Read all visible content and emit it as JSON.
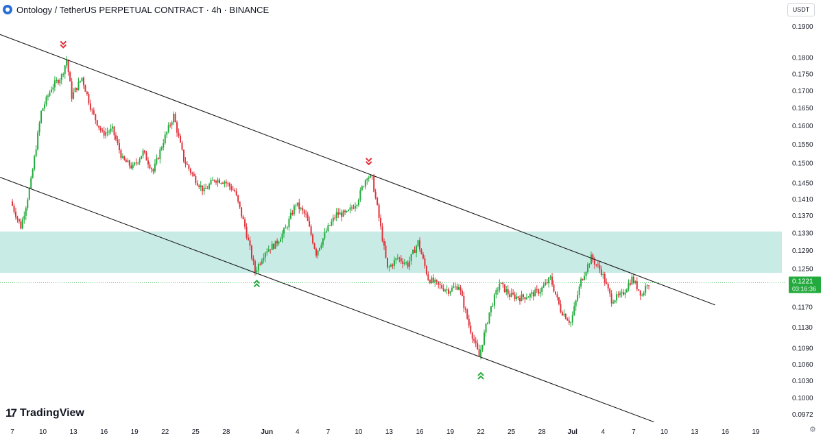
{
  "header": {
    "title": "Ontology / TetherUS PERPETUAL CONTRACT · 4h · BINANCE",
    "currency": "USDT"
  },
  "brand": {
    "name": "TradingView"
  },
  "colors": {
    "up": "#26a69a",
    "up_candle": "#22ab3c",
    "down": "#e0313a",
    "zone": "#a8ded6",
    "line": "#1a1a1a",
    "price_label": "#22ab3c"
  },
  "chart_data": {
    "type": "candlestick",
    "interval": "4h",
    "y_scale": "log",
    "ylim": [
      0.0955,
      0.1925
    ],
    "y_ticks": [
      "0.1900",
      "0.1800",
      "0.1750",
      "0.1700",
      "0.1650",
      "0.1600",
      "0.1550",
      "0.1500",
      "0.1450",
      "0.1410",
      "0.1370",
      "0.1330",
      "0.1290",
      "0.1250",
      "0.1170",
      "0.1130",
      "0.1090",
      "0.1060",
      "0.1030",
      "0.1000",
      "0.0972"
    ],
    "x_ticks": [
      "7",
      "10",
      "13",
      "16",
      "19",
      "22",
      "25",
      "28",
      "Jun",
      "4",
      "7",
      "10",
      "13",
      "16",
      "19",
      "22",
      "25",
      "28",
      "Jul",
      "4",
      "7",
      "10",
      "13",
      "16",
      "19"
    ],
    "last_price": "0.1221",
    "countdown": "03:16:36",
    "support_resistance_zone": [
      0.1242,
      0.1334
    ],
    "channel_upper": [
      [
        "May 7",
        0.1875
      ],
      [
        "Jul 15",
        0.1175
      ]
    ],
    "channel_lower": [
      [
        "May 7",
        0.1465
      ],
      [
        "Jul 9",
        0.096
      ]
    ],
    "markers": [
      {
        "type": "sell",
        "date": "May 12",
        "price": 0.1805
      },
      {
        "type": "sell",
        "date": "Jun 11",
        "price": 0.1475
      },
      {
        "type": "buy",
        "date": "May 31",
        "price": 0.1243
      },
      {
        "type": "buy",
        "date": "Jun 22",
        "price": 0.106
      }
    ],
    "price_path": [
      [
        "May 7",
        0.1405
      ],
      [
        "May 8",
        0.1345
      ],
      [
        "May 8.5",
        0.1395
      ],
      [
        "May 9",
        0.1455
      ],
      [
        "May 10",
        0.164
      ],
      [
        "May 11",
        0.171
      ],
      [
        "May 12",
        0.1745
      ],
      [
        "May 12.5",
        0.1795
      ],
      [
        "May 13",
        0.1685
      ],
      [
        "May 14",
        0.174
      ],
      [
        "May 15",
        0.164
      ],
      [
        "May 16",
        0.158
      ],
      [
        "May 17",
        0.159
      ],
      [
        "May 18",
        0.151
      ],
      [
        "May 19",
        0.149
      ],
      [
        "May 20",
        0.153
      ],
      [
        "May 21",
        0.148
      ],
      [
        "May 22",
        0.156
      ],
      [
        "May 23",
        0.163
      ],
      [
        "May 24",
        0.151
      ],
      [
        "May 25",
        0.1465
      ],
      [
        "May 26",
        0.143
      ],
      [
        "May 27",
        0.146
      ],
      [
        "May 28",
        0.1455
      ],
      [
        "May 29",
        0.143
      ],
      [
        "May 30",
        0.1345
      ],
      [
        "May 31",
        0.1245
      ],
      [
        "Jun 1",
        0.129
      ],
      [
        "Jun 2",
        0.1305
      ],
      [
        "Jun 3",
        0.134
      ],
      [
        "Jun 4",
        0.14
      ],
      [
        "Jun 5",
        0.137
      ],
      [
        "Jun 6",
        0.1285
      ],
      [
        "Jun 7",
        0.1335
      ],
      [
        "Jun 8",
        0.1375
      ],
      [
        "Jun 9",
        0.1375
      ],
      [
        "Jun 10",
        0.1405
      ],
      [
        "Jun 11",
        0.147
      ],
      [
        "Jun 11.5",
        0.146
      ],
      [
        "Jun 12",
        0.139
      ],
      [
        "Jun 13",
        0.125
      ],
      [
        "Jun 14",
        0.1275
      ],
      [
        "Jun 15",
        0.126
      ],
      [
        "Jun 16",
        0.131
      ],
      [
        "Jun 17",
        0.123
      ],
      [
        "Jun 18",
        0.1215
      ],
      [
        "Jun 19",
        0.1205
      ],
      [
        "Jun 20",
        0.1215
      ],
      [
        "Jun 21",
        0.1135
      ],
      [
        "Jun 22",
        0.1075
      ],
      [
        "Jun 23",
        0.116
      ],
      [
        "Jun 24",
        0.122
      ],
      [
        "Jun 25",
        0.1195
      ],
      [
        "Jun 26",
        0.119
      ],
      [
        "Jun 27",
        0.1195
      ],
      [
        "Jun 28",
        0.1205
      ],
      [
        "Jun 29",
        0.123
      ],
      [
        "Jun 30",
        0.1165
      ],
      [
        "Jul 1",
        0.114
      ],
      [
        "Jul 2",
        0.1225
      ],
      [
        "Jul 3",
        0.1275
      ],
      [
        "Jul 4",
        0.1245
      ],
      [
        "Jul 5",
        0.1185
      ],
      [
        "Jul 6",
        0.1195
      ],
      [
        "Jul 7",
        0.123
      ],
      [
        "Jul 8",
        0.1195
      ],
      [
        "Jul 8.5",
        0.1221
      ]
    ]
  }
}
